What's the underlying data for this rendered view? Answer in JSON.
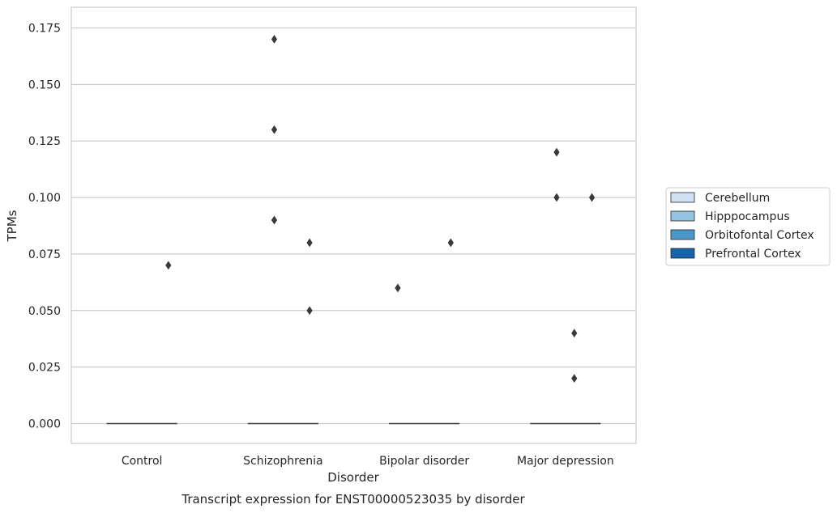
{
  "chart_data": {
    "type": "box",
    "title": "",
    "caption": "Transcript expression for ENST00000523035 by disorder",
    "xlabel": "Disorder",
    "ylabel": "TPMs",
    "categories": [
      "Control",
      "Schizophrenia",
      "Bipolar disorder",
      "Major depression"
    ],
    "ylim": [
      -0.008,
      0.179
    ],
    "yticks": [
      0.0,
      0.025,
      0.05,
      0.075,
      0.1,
      0.125,
      0.15,
      0.175
    ],
    "ytick_labels": [
      "0.000",
      "0.025",
      "0.050",
      "0.075",
      "0.100",
      "0.125",
      "0.150",
      "0.175"
    ],
    "grid": true,
    "legend_position": "right",
    "series": [
      {
        "name": "Cerebellum",
        "color": "#d0e1f2",
        "medians": [
          0,
          0,
          0,
          0
        ]
      },
      {
        "name": "Hipppocampus",
        "color": "#94c4df",
        "medians": [
          0,
          0,
          0,
          0
        ]
      },
      {
        "name": "Orbitofontal Cortex",
        "color": "#4a98c9",
        "medians": [
          0,
          0,
          0,
          0
        ]
      },
      {
        "name": "Prefrontal Cortex",
        "color": "#1764ab",
        "medians": [
          0,
          0,
          0,
          0
        ]
      }
    ],
    "outliers": [
      {
        "category": 0,
        "series": 3,
        "value": 0.07
      },
      {
        "category": 1,
        "series": 1,
        "value": 0.17
      },
      {
        "category": 1,
        "series": 1,
        "value": 0.13
      },
      {
        "category": 1,
        "series": 1,
        "value": 0.09
      },
      {
        "category": 1,
        "series": 3,
        "value": 0.08
      },
      {
        "category": 1,
        "series": 3,
        "value": 0.05
      },
      {
        "category": 2,
        "series": 0,
        "value": 0.06
      },
      {
        "category": 2,
        "series": 3,
        "value": 0.08
      },
      {
        "category": 3,
        "series": 1,
        "value": 0.12
      },
      {
        "category": 3,
        "series": 1,
        "value": 0.1
      },
      {
        "category": 3,
        "series": 3,
        "value": 0.1
      },
      {
        "category": 3,
        "series": 2,
        "value": 0.04
      },
      {
        "category": 3,
        "series": 2,
        "value": 0.02
      }
    ]
  },
  "colors": {
    "grid": "#cccccc",
    "spine": "#cccccc",
    "outlier": "#3a3a3a",
    "median": "#3a3a3a",
    "legend_border": "#cccccc"
  }
}
